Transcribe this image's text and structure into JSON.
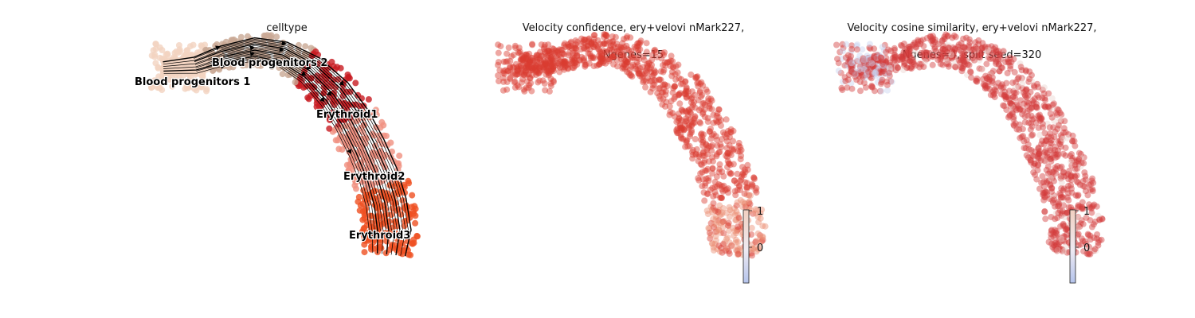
{
  "figure": {
    "colors": {
      "blood_progenitors_1": "#f3d3c1",
      "blood_progenitors_2": "#c9a995",
      "erythroid1": "#c81b22",
      "erythroid2": "#f09080",
      "erythroid3": "#ef5022",
      "confidence_main": "#d93b30",
      "confidence_low": "#ec8f73",
      "cosine_main": "#d23b3b",
      "cosine_low": "#c7d3ef",
      "colorbar_top": "#f1cfc0",
      "colorbar_bottom": "#b5c4ec"
    }
  },
  "chart_data": [
    {
      "type": "scatter",
      "title": "celltype",
      "overlay": "velocity streamlines with arrowheads",
      "categories": [
        "Blood progenitors 1",
        "Blood progenitors 2",
        "Erythroid1",
        "Erythroid2",
        "Erythroid3"
      ],
      "annotations": [
        "Blood progenitors 1",
        "Blood progenitors 2",
        "Erythroid1",
        "Erythroid2",
        "Erythroid3"
      ],
      "axes": "off",
      "legend": "on data"
    },
    {
      "type": "scatter",
      "title_lines": [
        "Velocity confidence, ery+velovi nMark227,",
        "Ngenes=15"
      ],
      "color_scale": "coolwarm",
      "colorbar_ticks": [
        "1",
        "0"
      ],
      "colorbar_range": [
        -1,
        1
      ],
      "axes": "off"
    },
    {
      "type": "scatter",
      "title_lines": [
        "Velocity cosine similarity, ery+velovi nMark227,",
        "Ngenes=4, split seed=320"
      ],
      "color_scale": "coolwarm",
      "colorbar_ticks": [
        "1",
        "0"
      ],
      "colorbar_range": [
        -1,
        1
      ],
      "axes": "off"
    }
  ]
}
